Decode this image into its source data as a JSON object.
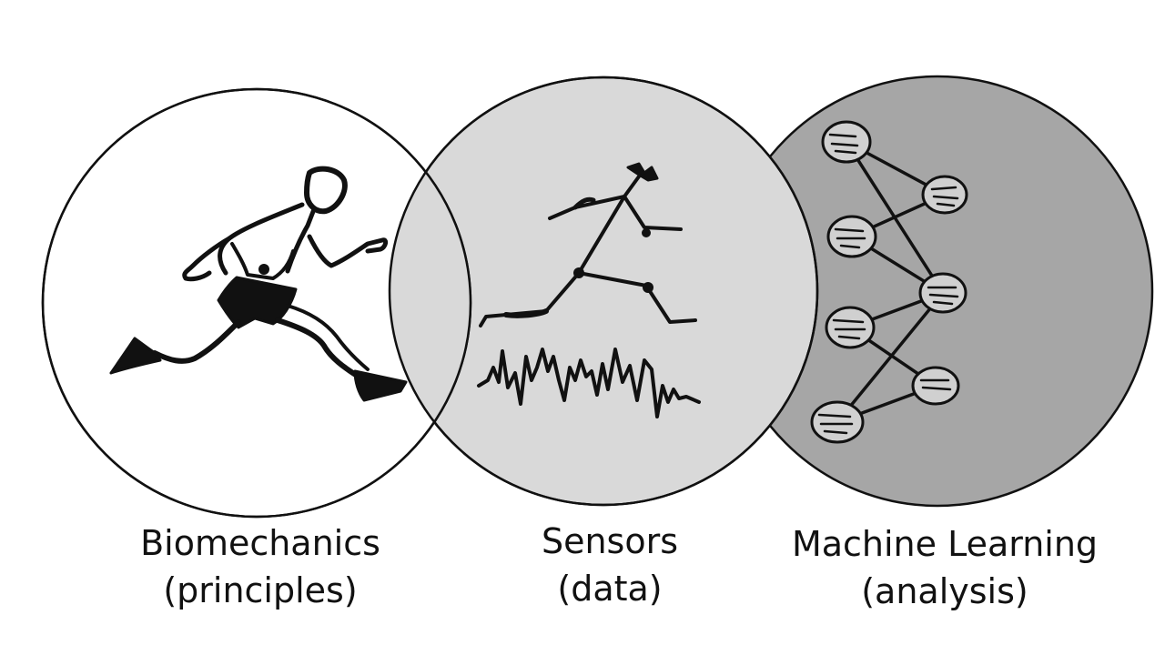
{
  "diagram": {
    "circles": [
      {
        "id": "biomechanics",
        "icon": "running-person-icon",
        "fill": "#ffffff",
        "label_line1": "Biomechanics",
        "label_line2": "(principles)"
      },
      {
        "id": "sensors",
        "icon": "stick-figure-with-signal-icon",
        "fill": "#d9d9d9",
        "label_line1": "Sensors",
        "label_line2": "(data)"
      },
      {
        "id": "machine-learning",
        "icon": "neural-network-icon",
        "fill": "#a6a6a6",
        "label_line1": "Machine Learning",
        "label_line2": "(analysis)"
      }
    ],
    "stroke_color": "#111111"
  }
}
